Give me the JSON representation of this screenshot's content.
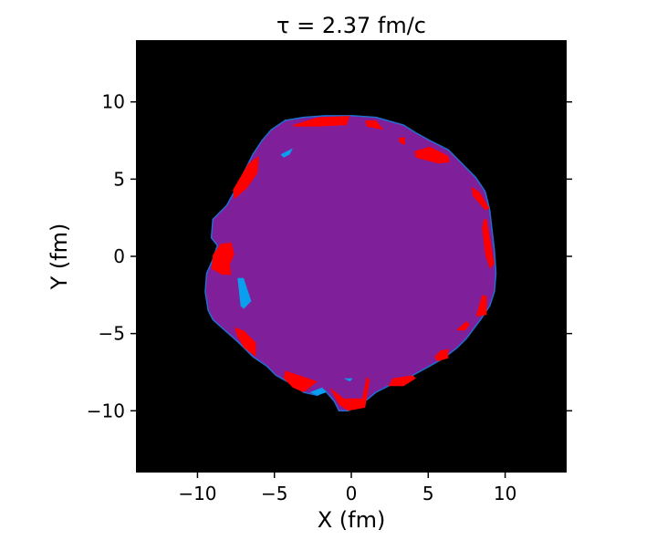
{
  "chart_data": {
    "type": "heatmap",
    "title": "τ =  2.37 fm/c",
    "xlabel": "X (fm)",
    "ylabel": "Y (fm)",
    "xlim": [
      -14,
      14
    ],
    "ylim": [
      -14,
      14
    ],
    "xticks": [
      -10,
      -5,
      0,
      5,
      10
    ],
    "yticks": [
      -10,
      -5,
      0,
      5,
      10
    ],
    "xtick_labels": [
      "−10",
      "−5",
      "0",
      "5",
      "10"
    ],
    "ytick_labels": [
      "−10",
      "−5",
      "0",
      "5",
      "10"
    ],
    "grid": false,
    "colors": {
      "background": "#000000",
      "bulk": "#7f1f9a",
      "edge": "#1e6fd0",
      "hot_regions": "#ff0000",
      "cold_regions": "#0a9fee"
    },
    "bulk_boundary": [
      [
        -3.1,
        9.0
      ],
      [
        -1.7,
        9.1
      ],
      [
        0.1,
        9.1
      ],
      [
        1.6,
        9.0
      ],
      [
        3.4,
        8.5
      ],
      [
        4.2,
        8.0
      ],
      [
        5.1,
        7.5
      ],
      [
        6.3,
        6.9
      ],
      [
        7.2,
        6.0
      ],
      [
        8.1,
        5.1
      ],
      [
        8.7,
        4.2
      ],
      [
        9.0,
        3.0
      ],
      [
        9.1,
        2.1
      ],
      [
        9.3,
        0.4
      ],
      [
        9.4,
        -1.1
      ],
      [
        9.3,
        -2.3
      ],
      [
        9.0,
        -3.2
      ],
      [
        8.4,
        -4.1
      ],
      [
        7.5,
        -5.3
      ],
      [
        6.9,
        -5.9
      ],
      [
        6.0,
        -6.6
      ],
      [
        5.1,
        -7.1
      ],
      [
        4.0,
        -7.7
      ],
      [
        2.8,
        -8.2
      ],
      [
        1.6,
        -8.8
      ],
      [
        1.0,
        -9.3
      ],
      [
        -0.2,
        -10.0
      ],
      [
        -0.8,
        -10.0
      ],
      [
        -1.1,
        -9.4
      ],
      [
        -1.7,
        -8.7
      ],
      [
        -2.2,
        -9.0
      ],
      [
        -3.1,
        -8.8
      ],
      [
        -4.0,
        -8.2
      ],
      [
        -4.9,
        -7.7
      ],
      [
        -5.5,
        -7.1
      ],
      [
        -6.4,
        -6.5
      ],
      [
        -7.3,
        -5.6
      ],
      [
        -8.1,
        -4.9
      ],
      [
        -9.0,
        -4.1
      ],
      [
        -9.3,
        -3.5
      ],
      [
        -9.5,
        -2.3
      ],
      [
        -9.4,
        -1.1
      ],
      [
        -9.0,
        -0.2
      ],
      [
        -8.7,
        0.7
      ],
      [
        -9.1,
        1.2
      ],
      [
        -9.0,
        2.4
      ],
      [
        -8.1,
        3.3
      ],
      [
        -7.6,
        4.2
      ],
      [
        -7.0,
        5.4
      ],
      [
        -6.4,
        6.6
      ],
      [
        -5.8,
        7.5
      ],
      [
        -5.2,
        8.2
      ],
      [
        -4.3,
        8.8
      ]
    ],
    "hot_regions": [
      [
        [
          -3.8,
          8.5
        ],
        [
          -2.2,
          9.0
        ],
        [
          -0.1,
          9.1
        ],
        [
          -0.3,
          8.5
        ],
        [
          -2.2,
          8.4
        ],
        [
          -3.7,
          8.4
        ]
      ],
      [
        [
          0.9,
          8.8
        ],
        [
          1.6,
          8.8
        ],
        [
          2.1,
          8.2
        ],
        [
          1.0,
          8.4
        ]
      ],
      [
        [
          3.1,
          7.7
        ],
        [
          3.5,
          7.7
        ],
        [
          3.5,
          7.2
        ],
        [
          3.1,
          7.4
        ]
      ],
      [
        [
          4.1,
          6.8
        ],
        [
          5.1,
          7.1
        ],
        [
          6.3,
          6.5
        ],
        [
          6.4,
          6.1
        ],
        [
          5.7,
          6.0
        ],
        [
          4.2,
          6.4
        ]
      ],
      [
        [
          7.8,
          4.5
        ],
        [
          8.3,
          4.2
        ],
        [
          9.0,
          3.1
        ],
        [
          8.7,
          3.0
        ],
        [
          7.9,
          3.9
        ]
      ],
      [
        [
          8.6,
          2.4
        ],
        [
          8.8,
          2.4
        ],
        [
          9.3,
          -0.5
        ],
        [
          9.0,
          -0.8
        ],
        [
          8.7,
          0.1
        ],
        [
          8.5,
          1.8
        ]
      ],
      [
        [
          8.5,
          -2.5
        ],
        [
          8.8,
          -2.6
        ],
        [
          8.8,
          -3.8
        ],
        [
          8.1,
          -3.9
        ]
      ],
      [
        [
          7.5,
          -4.2
        ],
        [
          7.7,
          -4.4
        ],
        [
          7.4,
          -4.8
        ],
        [
          6.8,
          -4.8
        ]
      ],
      [
        [
          5.8,
          -6.1
        ],
        [
          6.3,
          -6.0
        ],
        [
          6.3,
          -6.6
        ],
        [
          5.6,
          -6.8
        ],
        [
          5.4,
          -6.5
        ]
      ],
      [
        [
          2.7,
          -7.9
        ],
        [
          4.0,
          -7.7
        ],
        [
          4.2,
          -7.9
        ],
        [
          3.4,
          -8.4
        ],
        [
          2.4,
          -8.4
        ]
      ],
      [
        [
          -1.4,
          -8.5
        ],
        [
          -0.5,
          -9.2
        ],
        [
          0.7,
          -9.2
        ],
        [
          1.0,
          -7.8
        ],
        [
          1.2,
          -8.0
        ],
        [
          0.9,
          -9.8
        ],
        [
          -0.2,
          -10.0
        ],
        [
          -0.8,
          -9.6
        ]
      ],
      [
        [
          -4.3,
          -7.4
        ],
        [
          -3.7,
          -7.6
        ],
        [
          -2.2,
          -8.1
        ],
        [
          -3.1,
          -8.8
        ],
        [
          -3.8,
          -8.5
        ],
        [
          -4.4,
          -7.9
        ]
      ],
      [
        [
          -7.6,
          -4.6
        ],
        [
          -7.0,
          -4.8
        ],
        [
          -6.2,
          -5.6
        ],
        [
          -6.2,
          -6.5
        ],
        [
          -7.0,
          -5.9
        ],
        [
          -7.4,
          -5.2
        ]
      ],
      [
        [
          -8.5,
          0.8
        ],
        [
          -7.8,
          0.9
        ],
        [
          -7.6,
          0.1
        ],
        [
          -7.9,
          -0.5
        ],
        [
          -7.8,
          -1.2
        ],
        [
          -8.4,
          -1.2
        ],
        [
          -9.1,
          -0.8
        ],
        [
          -9.0,
          0.1
        ]
      ],
      [
        [
          -7.7,
          4.3
        ],
        [
          -6.7,
          6.0
        ],
        [
          -6.0,
          6.5
        ],
        [
          -6.1,
          5.4
        ],
        [
          -6.8,
          4.4
        ],
        [
          -7.6,
          3.7
        ]
      ]
    ],
    "cold_regions": [
      [
        [
          -4.6,
          6.6
        ],
        [
          -3.8,
          7.0
        ],
        [
          -4.0,
          6.6
        ],
        [
          -4.4,
          6.4
        ]
      ],
      [
        [
          -7.4,
          -1.4
        ],
        [
          -7.0,
          -1.4
        ],
        [
          -6.5,
          -2.9
        ],
        [
          -7.0,
          -3.4
        ],
        [
          -7.2,
          -3.2
        ]
      ],
      [
        [
          -0.5,
          -7.9
        ],
        [
          0.1,
          -7.9
        ],
        [
          -0.1,
          -8.1
        ]
      ],
      [
        [
          -2.7,
          -8.8
        ],
        [
          -1.9,
          -8.5
        ],
        [
          -1.6,
          -8.8
        ],
        [
          -2.2,
          -9.0
        ]
      ]
    ]
  }
}
